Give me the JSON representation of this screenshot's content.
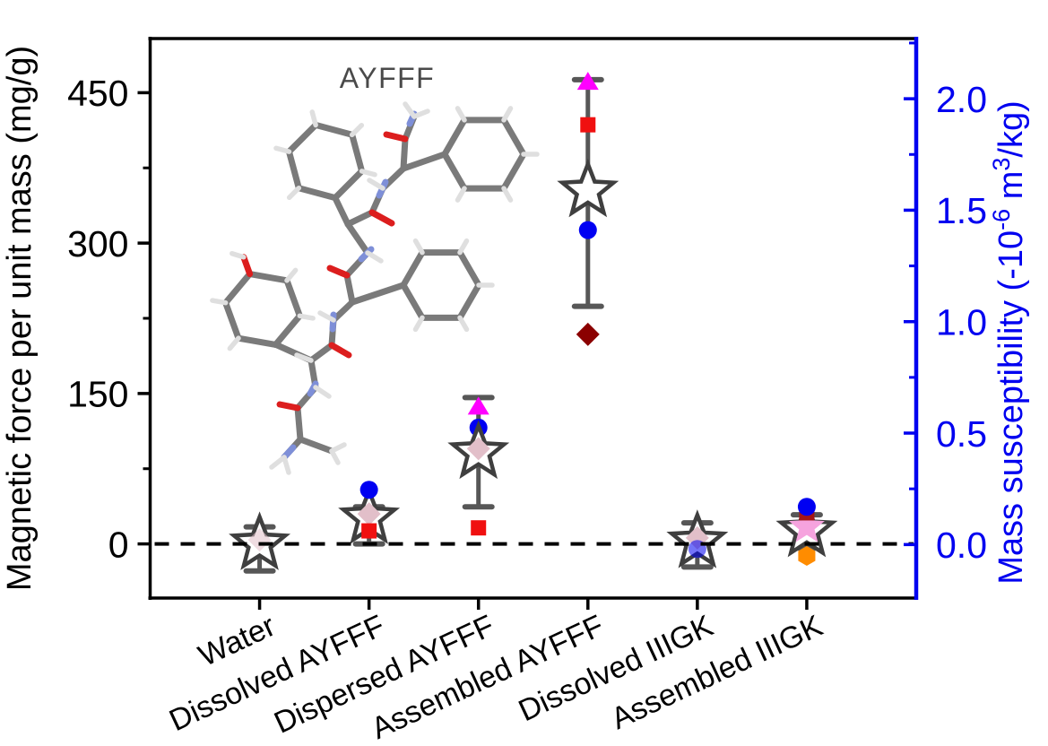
{
  "figure": {
    "background": "#FFFFFF",
    "frame_color": "#000000",
    "inset_label": "AYFFF",
    "inset_label_color": "#4A4A4A",
    "left_axis": {
      "title": "Magnetic force per unit mass (mg/g)",
      "color": "#000000",
      "range": [
        -54,
        504
      ],
      "major_ticks": [
        {
          "value": 0,
          "label": "0"
        },
        {
          "value": 150,
          "label": "150"
        },
        {
          "value": 300,
          "label": "300"
        },
        {
          "value": 450,
          "label": "450"
        }
      ],
      "minor_ticks": [
        75,
        225,
        375
      ]
    },
    "right_axis": {
      "title_parts": {
        "prefix": "Mass susceptibility (-10",
        "sup1": "-6",
        "mid": " m",
        "sup2": "3",
        "suffix": "/kg)"
      },
      "color": "#0000F0",
      "range": [
        -0.24,
        2.27
      ],
      "major_ticks": [
        {
          "value": 0,
          "label": "0.0"
        },
        {
          "value": 0.5,
          "label": "0.5"
        },
        {
          "value": 1,
          "label": "1.0"
        },
        {
          "value": 1.5,
          "label": "1.5"
        },
        {
          "value": 2,
          "label": "2.0"
        }
      ],
      "minor_ticks": [
        0.25,
        0.75,
        1.25,
        1.75,
        2.25
      ]
    },
    "zero_line": {
      "value": 0,
      "style": "dashed",
      "color": "#000000"
    },
    "molecule_colors": {
      "carbon": "#7A7A7A",
      "hydrogen": "#DFDFDF",
      "nitrogen": "#7E8FD8",
      "oxygen": "#DC1E1E"
    }
  },
  "chart_data": {
    "type": "scatter",
    "title": "",
    "categories": [
      "Water",
      "Dissolved AYFFF",
      "Dispersed AYFFF",
      "Assembled AYFFF",
      "Dissolved IIIGK",
      "Assembled IIIGK"
    ],
    "y_units_left": "mg/g",
    "y_units_right": "-10^-6 m^3/kg",
    "legend": "none",
    "grid": "off",
    "marker_styles": {
      "open-star": {
        "fill": "#FFFFFF",
        "stroke": "#3F3F3F"
      },
      "pink-diamond": {
        "fill": "#E2BFC9",
        "stroke": "none"
      },
      "magenta-triangle": {
        "fill": "#FF00FF",
        "stroke": "none"
      },
      "red-square": {
        "fill": "#F01010",
        "stroke": "none"
      },
      "blue-circle": {
        "fill": "#0000F2",
        "stroke": "none"
      },
      "darkred-diamond": {
        "fill": "#8B0000",
        "stroke": "none"
      },
      "darkred-square": {
        "fill": "#A31515",
        "stroke": "none"
      },
      "pink-star": {
        "fill": "#F6A3DE",
        "stroke": "none"
      },
      "orange-hexagon": {
        "fill": "#FF8C00",
        "stroke": "none"
      },
      "error-bar": {
        "stroke": "#3A3A3A"
      }
    },
    "points": [
      {
        "category": "Water",
        "error_bar": {
          "low": -27,
          "high": 17
        },
        "markers": [
          {
            "type": "open-star",
            "value": 0,
            "right_value": 0.0
          },
          {
            "type": "pink-diamond",
            "value": 4,
            "right_value": 0.02,
            "opacity": 0.55
          }
        ]
      },
      {
        "category": "Dissolved AYFFF",
        "error_bar": {
          "low": 0,
          "high": 37
        },
        "markers": [
          {
            "type": "magenta-triangle",
            "value": 40,
            "right_value": 0.18
          },
          {
            "type": "open-star",
            "value": 26,
            "right_value": 0.12
          },
          {
            "type": "pink-diamond",
            "value": 30,
            "right_value": 0.14
          },
          {
            "type": "red-square",
            "value": 13,
            "right_value": 0.06
          },
          {
            "type": "blue-circle",
            "value": 54,
            "right_value": 0.24
          }
        ]
      },
      {
        "category": "Dispersed AYFFF",
        "error_bar": {
          "low": 37,
          "high": 146
        },
        "markers": [
          {
            "type": "red-square",
            "value": 16,
            "right_value": 0.07
          },
          {
            "type": "magenta-triangle",
            "value": 137,
            "right_value": 0.62
          },
          {
            "type": "blue-circle",
            "value": 116,
            "right_value": 0.52
          },
          {
            "type": "open-star",
            "value": 91,
            "right_value": 0.41
          },
          {
            "type": "pink-diamond",
            "value": 95,
            "right_value": 0.43
          }
        ]
      },
      {
        "category": "Assembled AYFFF",
        "error_bar": {
          "low": 237,
          "high": 463
        },
        "markers": [
          {
            "type": "magenta-triangle",
            "value": 461,
            "right_value": 2.08
          },
          {
            "type": "red-square",
            "value": 418,
            "right_value": 1.88
          },
          {
            "type": "open-star",
            "value": 352,
            "right_value": 1.59
          },
          {
            "type": "blue-circle",
            "value": 313,
            "right_value": 1.41
          },
          {
            "type": "darkred-diamond",
            "value": 209,
            "right_value": 0.94
          }
        ]
      },
      {
        "category": "Dissolved IIIGK",
        "error_bar": {
          "low": -23,
          "high": 21
        },
        "markers": [
          {
            "type": "open-star",
            "value": 2,
            "right_value": 0.01
          },
          {
            "type": "pink-diamond",
            "value": 6,
            "right_value": 0.03
          },
          {
            "type": "blue-circle",
            "value": -5,
            "right_value": -0.02,
            "opacity": 0.55
          }
        ]
      },
      {
        "category": "Assembled IIIGK",
        "error_bar": {
          "low": -4,
          "high": 29
        },
        "markers": [
          {
            "type": "open-star",
            "value": 13,
            "right_value": 0.06
          },
          {
            "type": "pink-star",
            "value": 17,
            "right_value": 0.08
          },
          {
            "type": "darkred-square",
            "value": 31,
            "right_value": 0.14
          },
          {
            "type": "blue-circle",
            "value": 37,
            "right_value": 0.17
          },
          {
            "type": "orange-hexagon",
            "value": -12,
            "right_value": -0.05
          }
        ]
      }
    ]
  }
}
